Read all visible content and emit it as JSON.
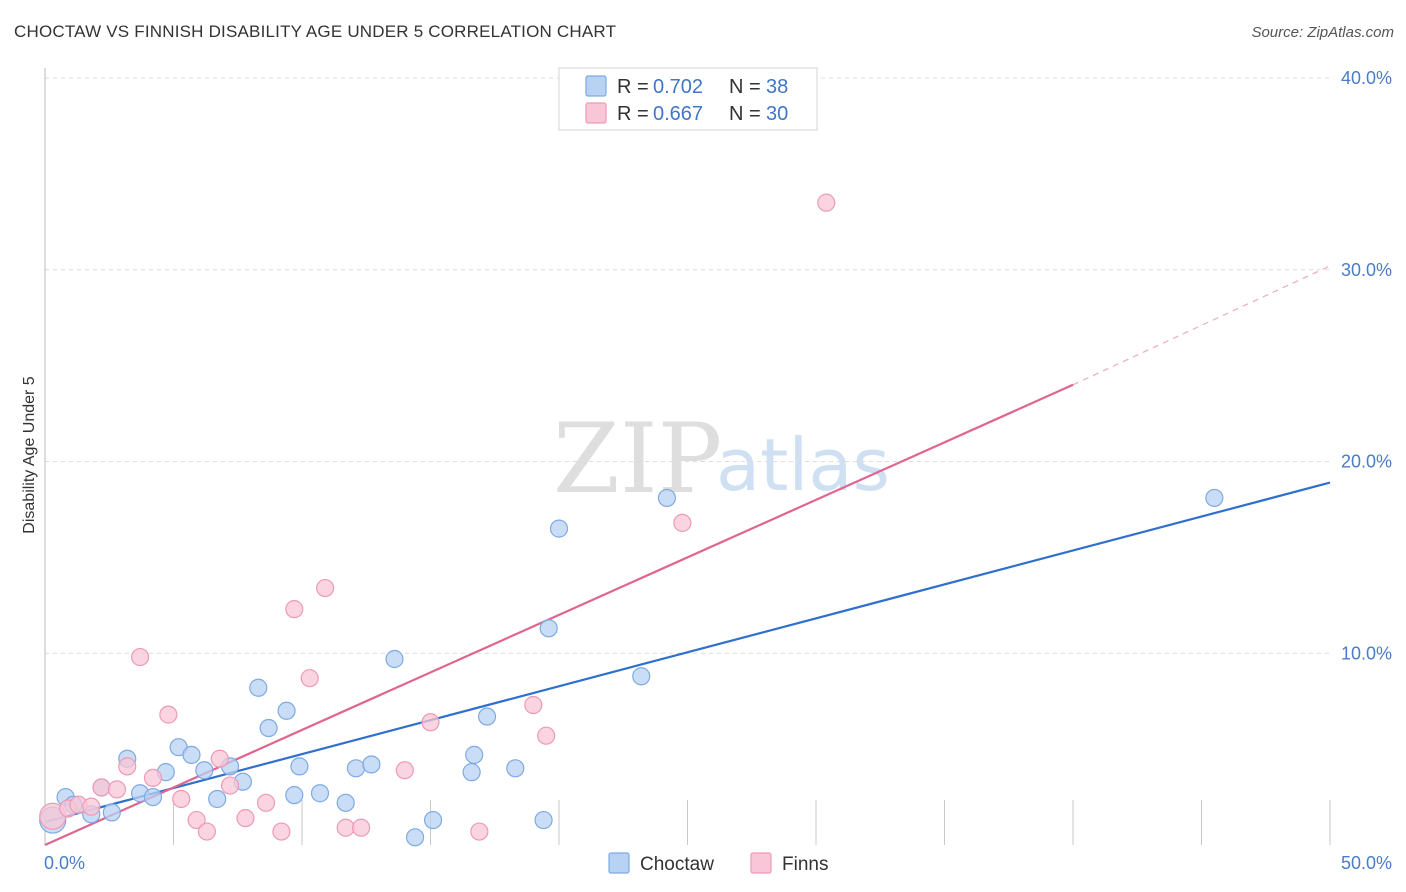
{
  "title": "CHOCTAW VS FINNISH DISABILITY AGE UNDER 5 CORRELATION CHART",
  "source": "Source: ZipAtlas.com",
  "watermark": {
    "zip": "ZIP",
    "atlas": "atlas"
  },
  "colors": {
    "choctaw_fill": "#b8d2f3",
    "choctaw_stroke": "#7eaae2",
    "choctaw_line": "#2f6fce",
    "finns_fill": "#f8c6d6",
    "finns_stroke": "#ee9ab6",
    "finns_line": "#e0648f",
    "grid": "#dcdcdc",
    "tick_text": "#4a7cc9"
  },
  "legend": {
    "choctaw": {
      "r_label": "R =",
      "r_value": "0.702",
      "n_label": "N =",
      "n_value": "38"
    },
    "finns": {
      "r_label": "R =",
      "r_value": "0.667",
      "n_label": "N =",
      "n_value": "30"
    }
  },
  "chart_data": {
    "type": "scatter",
    "title": "CHOCTAW VS FINNISH DISABILITY AGE UNDER 5 CORRELATION CHART",
    "xlabel": "",
    "ylabel": "Disability Age Under 5",
    "xlim": [
      0,
      50
    ],
    "ylim": [
      0,
      40
    ],
    "x_tick_labels": [
      "0.0%",
      "50.0%"
    ],
    "y_ticks": [
      10,
      20,
      30,
      40
    ],
    "y_tick_labels": [
      "10.0%",
      "20.0%",
      "30.0%",
      "40.0%"
    ],
    "legend_labels": [
      "Choctaw",
      "Finns"
    ],
    "series": [
      {
        "name": "Choctaw",
        "r": 0.702,
        "n": 38,
        "trend": {
          "x1": 0.0,
          "y1": 1.2,
          "x2": 50.0,
          "y2": 18.9
        },
        "points": [
          [
            0.3,
            1.3
          ],
          [
            0.8,
            2.5
          ],
          [
            1.1,
            2.1
          ],
          [
            1.8,
            1.6
          ],
          [
            2.2,
            3.0
          ],
          [
            2.6,
            1.7
          ],
          [
            3.2,
            4.5
          ],
          [
            3.7,
            2.7
          ],
          [
            4.2,
            2.5
          ],
          [
            4.7,
            3.8
          ],
          [
            5.2,
            5.1
          ],
          [
            5.7,
            4.7
          ],
          [
            6.2,
            3.9
          ],
          [
            6.7,
            2.4
          ],
          [
            7.2,
            4.1
          ],
          [
            7.7,
            3.3
          ],
          [
            8.3,
            8.2
          ],
          [
            8.7,
            6.1
          ],
          [
            9.4,
            7.0
          ],
          [
            9.7,
            2.6
          ],
          [
            9.9,
            4.1
          ],
          [
            10.7,
            2.7
          ],
          [
            11.7,
            2.2
          ],
          [
            12.1,
            4.0
          ],
          [
            12.7,
            4.2
          ],
          [
            13.6,
            9.7
          ],
          [
            14.4,
            0.4
          ],
          [
            15.1,
            1.3
          ],
          [
            16.6,
            3.8
          ],
          [
            16.7,
            4.7
          ],
          [
            17.2,
            6.7
          ],
          [
            18.3,
            4.0
          ],
          [
            19.4,
            1.3
          ],
          [
            19.6,
            11.3
          ],
          [
            20.0,
            16.5
          ],
          [
            23.2,
            8.8
          ],
          [
            24.2,
            18.1
          ],
          [
            45.5,
            18.1
          ]
        ]
      },
      {
        "name": "Finns",
        "r": 0.667,
        "n": 30,
        "trend": {
          "x1": 0.0,
          "y1": 0.0,
          "x2": 40.0,
          "y2": 24.0,
          "dash_x2": 50.0,
          "dash_y2": 30.2
        },
        "points": [
          [
            0.3,
            1.5
          ],
          [
            0.9,
            1.9
          ],
          [
            1.3,
            2.1
          ],
          [
            1.8,
            2.0
          ],
          [
            2.2,
            3.0
          ],
          [
            2.8,
            2.9
          ],
          [
            3.2,
            4.1
          ],
          [
            3.7,
            9.8
          ],
          [
            4.2,
            3.5
          ],
          [
            4.8,
            6.8
          ],
          [
            5.3,
            2.4
          ],
          [
            5.9,
            1.3
          ],
          [
            6.3,
            0.7
          ],
          [
            6.8,
            4.5
          ],
          [
            7.2,
            3.1
          ],
          [
            7.8,
            1.4
          ],
          [
            8.6,
            2.2
          ],
          [
            9.2,
            0.7
          ],
          [
            9.7,
            12.3
          ],
          [
            10.3,
            8.7
          ],
          [
            10.9,
            13.4
          ],
          [
            11.7,
            0.9
          ],
          [
            12.3,
            0.9
          ],
          [
            14.0,
            3.9
          ],
          [
            15.0,
            6.4
          ],
          [
            16.9,
            0.7
          ],
          [
            19.0,
            7.3
          ],
          [
            19.5,
            5.7
          ],
          [
            24.8,
            16.8
          ],
          [
            30.4,
            33.5
          ]
        ]
      }
    ]
  }
}
